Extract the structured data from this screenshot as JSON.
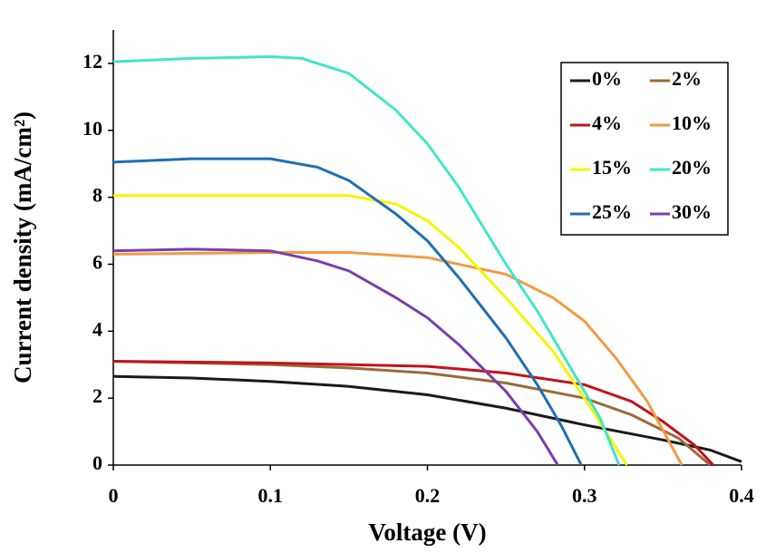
{
  "chart_data": {
    "type": "line",
    "x_label": "Voltage (V)",
    "y_label": "Current density (mA/cm²)",
    "xlim": [
      0,
      0.4
    ],
    "ylim": [
      0,
      13
    ],
    "xticks": [
      0,
      0.1,
      0.2,
      0.3,
      0.4
    ],
    "yticks": [
      0,
      2,
      4,
      6,
      8,
      10,
      12
    ],
    "legend": "upper right",
    "series": [
      {
        "name": "0%",
        "color": "#1a1a1a",
        "x": [
          0,
          0.05,
          0.1,
          0.15,
          0.2,
          0.25,
          0.3,
          0.35,
          0.38,
          0.4
        ],
        "values": [
          2.65,
          2.6,
          2.5,
          2.35,
          2.1,
          1.7,
          1.2,
          0.75,
          0.45,
          0.1
        ]
      },
      {
        "name": "2%",
        "color": "#9b6a3b",
        "x": [
          0,
          0.1,
          0.15,
          0.2,
          0.25,
          0.3,
          0.33,
          0.36,
          0.38
        ],
        "values": [
          3.1,
          3.0,
          2.9,
          2.75,
          2.45,
          2.0,
          1.5,
          0.8,
          0
        ]
      },
      {
        "name": "4%",
        "color": "#c0141c",
        "x": [
          0,
          0.1,
          0.2,
          0.25,
          0.3,
          0.33,
          0.35,
          0.37,
          0.382
        ],
        "values": [
          3.1,
          3.05,
          2.95,
          2.75,
          2.4,
          1.9,
          1.3,
          0.6,
          0
        ]
      },
      {
        "name": "10%",
        "color": "#f39a44",
        "x": [
          0,
          0.1,
          0.15,
          0.2,
          0.25,
          0.28,
          0.3,
          0.32,
          0.34,
          0.362
        ],
        "values": [
          6.3,
          6.35,
          6.35,
          6.2,
          5.7,
          5.0,
          4.3,
          3.2,
          1.9,
          0
        ]
      },
      {
        "name": "15%",
        "color": "#f5f500",
        "x": [
          0,
          0.1,
          0.15,
          0.18,
          0.2,
          0.22,
          0.25,
          0.28,
          0.3,
          0.315,
          0.327
        ],
        "values": [
          8.05,
          8.05,
          8.05,
          7.8,
          7.3,
          6.5,
          5.0,
          3.4,
          2.0,
          0.9,
          0
        ]
      },
      {
        "name": "20%",
        "color": "#40e6c8",
        "x": [
          0,
          0.05,
          0.1,
          0.12,
          0.15,
          0.18,
          0.2,
          0.22,
          0.25,
          0.27,
          0.29,
          0.31,
          0.322
        ],
        "values": [
          12.05,
          12.15,
          12.2,
          12.15,
          11.7,
          10.6,
          9.6,
          8.3,
          6.0,
          4.6,
          3.0,
          1.4,
          0
        ]
      },
      {
        "name": "25%",
        "color": "#1f6fb2",
        "x": [
          0,
          0.05,
          0.1,
          0.13,
          0.15,
          0.18,
          0.2,
          0.22,
          0.25,
          0.27,
          0.285,
          0.298
        ],
        "values": [
          9.05,
          9.15,
          9.15,
          8.9,
          8.5,
          7.5,
          6.7,
          5.6,
          3.8,
          2.4,
          1.2,
          0
        ]
      },
      {
        "name": "30%",
        "color": "#7b3fa8",
        "x": [
          0,
          0.05,
          0.1,
          0.13,
          0.15,
          0.18,
          0.2,
          0.22,
          0.25,
          0.27,
          0.283
        ],
        "values": [
          6.4,
          6.45,
          6.4,
          6.1,
          5.8,
          5.0,
          4.4,
          3.6,
          2.2,
          1.0,
          0
        ]
      }
    ]
  }
}
